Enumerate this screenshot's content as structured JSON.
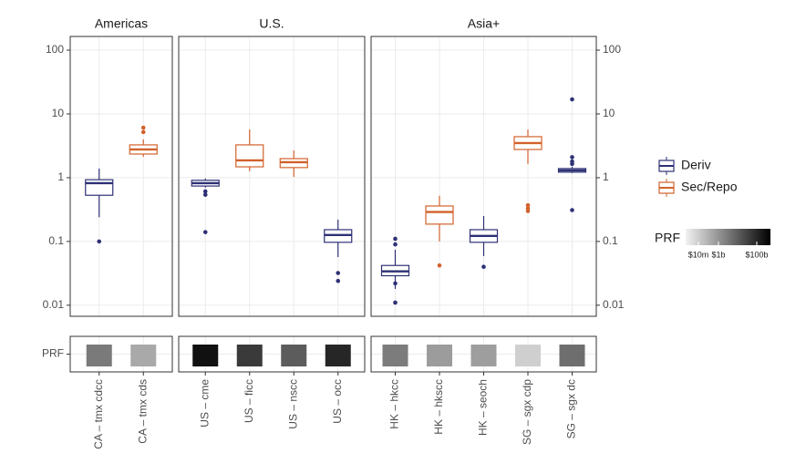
{
  "chart_data": {
    "type": "boxplot",
    "log_y": true,
    "grid": true,
    "ylim": [
      0.0067,
      164
    ],
    "yticks": [
      0.01,
      0.1,
      1,
      10,
      100
    ],
    "series": [
      {
        "name": "Deriv",
        "color": "#2e3175"
      },
      {
        "name": "Sec/Repo",
        "color": "#d2622c"
      }
    ],
    "strip_label": "PRF",
    "prf_legend": {
      "title": "PRF",
      "labels": [
        "$10m",
        "$1b",
        "$100b"
      ]
    },
    "facets": [
      {
        "title": "Americas",
        "categories": [
          "CA – tmx cdcc",
          "CA – tmx cds"
        ],
        "boxes": [
          {
            "color": "#2e3175",
            "prf_fill": "#7a7a7a",
            "whisker_low": 0.24,
            "q1": 0.53,
            "median": 0.82,
            "q3": 0.93,
            "whisker_high": 1.39,
            "outliers": [
              0.1
            ]
          },
          {
            "color": "#d2622c",
            "prf_fill": "#a9a9a9",
            "whisker_low": 2.13,
            "q1": 2.35,
            "median": 2.77,
            "q3": 3.27,
            "whisker_high": 3.98,
            "outliers": [
              5.2,
              6.1
            ]
          }
        ]
      },
      {
        "title": "U.S.",
        "categories": [
          "US – cme",
          "US – ficc",
          "US – nscc",
          "US – occ"
        ],
        "boxes": [
          {
            "color": "#2e3175",
            "prf_fill": "#111111",
            "whisker_low": 0.7,
            "q1": 0.74,
            "median": 0.82,
            "q3": 0.91,
            "whisker_high": 0.97,
            "outliers": [
              0.61,
              0.54,
              0.14
            ]
          },
          {
            "color": "#d2622c",
            "prf_fill": "#3a3a3a",
            "whisker_low": 1.26,
            "q1": 1.48,
            "median": 1.87,
            "q3": 3.27,
            "whisker_high": 5.7,
            "outliers": []
          },
          {
            "color": "#d2622c",
            "prf_fill": "#5c5c5c",
            "whisker_low": 1.03,
            "q1": 1.44,
            "median": 1.75,
            "q3": 1.99,
            "whisker_high": 2.68,
            "outliers": []
          },
          {
            "color": "#2e3175",
            "prf_fill": "#262626",
            "whisker_low": 0.057,
            "q1": 0.097,
            "median": 0.126,
            "q3": 0.153,
            "whisker_high": 0.22,
            "outliers": [
              0.032,
              0.024
            ]
          }
        ]
      },
      {
        "title": "Asia+",
        "categories": [
          "HK – hkcc",
          "HK – hkscc",
          "HK – seoch",
          "SG – sgx cdp",
          "SG – sgx dc"
        ],
        "boxes": [
          {
            "color": "#2e3175",
            "prf_fill": "#7c7c7c",
            "whisker_low": 0.018,
            "q1": 0.029,
            "median": 0.034,
            "q3": 0.042,
            "whisker_high": 0.074,
            "outliers": [
              0.11,
              0.09,
              0.022,
              0.011
            ]
          },
          {
            "color": "#d2622c",
            "prf_fill": "#9c9c9c",
            "whisker_low": 0.1,
            "q1": 0.187,
            "median": 0.29,
            "q3": 0.36,
            "whisker_high": 0.52,
            "outliers": [
              0.042
            ]
          },
          {
            "color": "#2e3175",
            "prf_fill": "#9e9e9e",
            "whisker_low": 0.059,
            "q1": 0.097,
            "median": 0.122,
            "q3": 0.153,
            "whisker_high": 0.25,
            "outliers": [
              0.04
            ]
          },
          {
            "color": "#d2622c",
            "prf_fill": "#cfcfcf",
            "whisker_low": 1.64,
            "q1": 2.77,
            "median": 3.49,
            "q3": 4.4,
            "whisker_high": 5.7,
            "outliers": [
              0.37,
              0.33,
              0.3
            ]
          },
          {
            "color": "#2e3175",
            "prf_fill": "#6e6e6e",
            "whisker_low": 1.18,
            "q1": 1.22,
            "median": 1.3,
            "q3": 1.39,
            "whisker_high": 1.48,
            "outliers": [
              16.9,
              2.1,
              1.64,
              1.8,
              0.31
            ]
          }
        ]
      }
    ]
  }
}
